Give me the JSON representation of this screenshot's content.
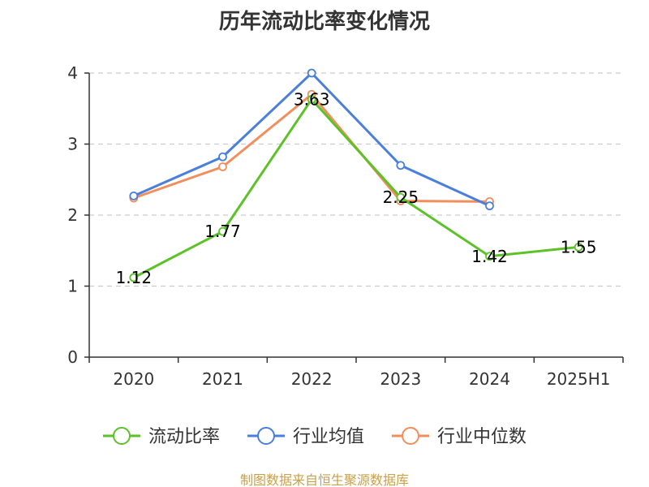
{
  "chart_data": {
    "type": "line",
    "title": "历年流动比率变化情况",
    "categories": [
      "2020",
      "2021",
      "2022",
      "2023",
      "2024",
      "2025H1"
    ],
    "ylim": [
      0,
      4
    ],
    "yticks": [
      0,
      1,
      2,
      3,
      4
    ],
    "grid": true,
    "legend_position": "bottom",
    "series": [
      {
        "name": "流动比率",
        "color": "#5cc228",
        "values": [
          1.12,
          1.77,
          3.63,
          2.25,
          1.42,
          1.55
        ],
        "labels": [
          "1.12",
          "1.77",
          "3.63",
          "2.25",
          "1.42",
          "1.55"
        ]
      },
      {
        "name": "行业均值",
        "color": "#4a7fdb",
        "values": [
          2.27,
          2.82,
          4.0,
          2.7,
          2.13,
          null
        ]
      },
      {
        "name": "行业中位数",
        "color": "#f28e5b",
        "values": [
          2.24,
          2.68,
          3.7,
          2.2,
          2.19,
          null
        ]
      }
    ],
    "source": "制图数据来自恒生聚源数据库"
  }
}
